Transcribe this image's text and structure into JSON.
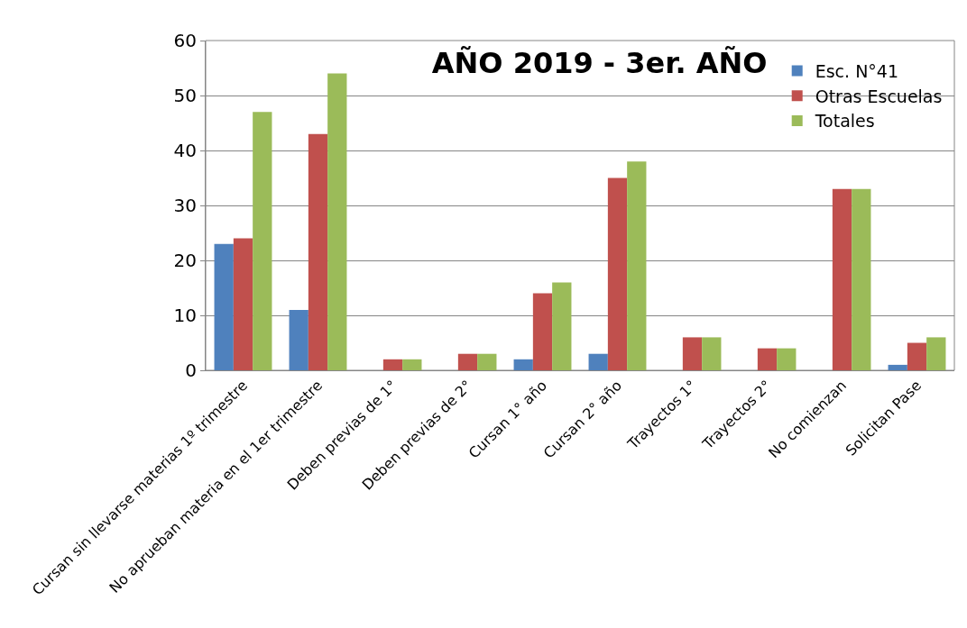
{
  "chart_data": {
    "type": "bar",
    "title": "AÑO 2019 - 3er. AÑO",
    "categories": [
      "Cursan sin llevarse materias 1º trimestre",
      "No aprueban materia en el 1er trimestre",
      "Deben previas de 1°",
      "Deben previas de 2°",
      "Cursan 1° año",
      "Cursan 2° año",
      "Trayectos 1°",
      "Trayectos 2°",
      "No comienzan",
      "Solicitan Pase"
    ],
    "series": [
      {
        "name": "Esc. N°41",
        "color": "#4f81bd",
        "values": [
          23,
          11,
          0,
          0,
          2,
          3,
          0,
          0,
          0,
          1
        ]
      },
      {
        "name": "Otras Escuelas",
        "color": "#c0504d",
        "values": [
          24,
          43,
          2,
          3,
          14,
          35,
          6,
          4,
          33,
          5
        ]
      },
      {
        "name": "Totales",
        "color": "#9bbb59",
        "values": [
          47,
          54,
          2,
          3,
          16,
          38,
          6,
          4,
          33,
          6
        ]
      }
    ],
    "ylim": [
      0,
      60
    ],
    "yticks": [
      0,
      10,
      20,
      30,
      40,
      50,
      60
    ],
    "grid": "y",
    "legend": "top right"
  }
}
